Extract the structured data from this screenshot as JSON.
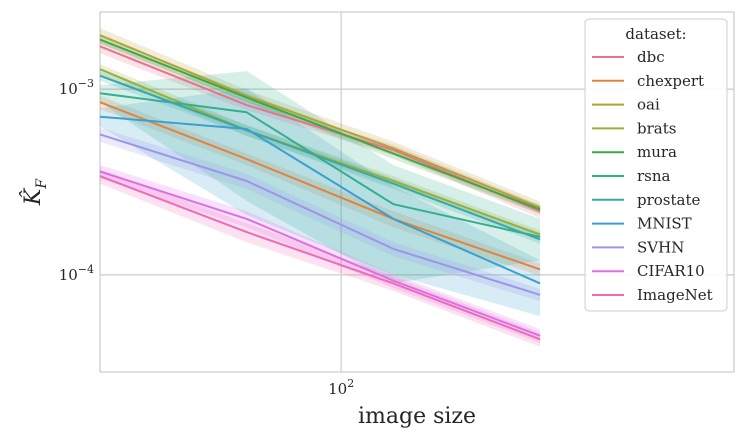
{
  "chart_data": {
    "type": "line",
    "title": "",
    "xlabel": "image size",
    "ylabel": "K̂_F",
    "ylabel_display": {
      "main": "K̂",
      "sub": "F"
    },
    "xscale": "log",
    "yscale": "log",
    "xlim": [
      32,
      640
    ],
    "ylim": [
      3e-05,
      0.0026
    ],
    "x_ticks": [
      {
        "value": 100,
        "base": "10",
        "exp": "2"
      }
    ],
    "y_ticks": [
      {
        "value": 0.001,
        "base": "10",
        "exp": "−3"
      },
      {
        "value": 0.0001,
        "base": "10",
        "exp": "−4"
      }
    ],
    "grid": true,
    "legend": {
      "title": "dataset:",
      "placement": "top-right"
    },
    "x": [
      32,
      64,
      128,
      256
    ],
    "series": [
      {
        "name": "dbc",
        "color": "#e8748c",
        "values": [
          0.0017,
          0.00082,
          0.00047,
          0.00022
        ],
        "band": [
          0.00014,
          5e-05,
          3e-05,
          1.8e-05
        ]
      },
      {
        "name": "chexpert",
        "color": "#df8440",
        "values": [
          0.00085,
          0.00042,
          0.0002,
          0.000107
        ],
        "band": [
          7e-05,
          3e-05,
          2e-05,
          8e-06
        ]
      },
      {
        "name": "oai",
        "color": "#b5a235",
        "values": [
          0.00195,
          0.00092,
          0.00048,
          0.00023
        ],
        "band": [
          0.00018,
          7e-05,
          4e-05,
          1.8e-05
        ]
      },
      {
        "name": "brats",
        "color": "#96b03a",
        "values": [
          0.00128,
          0.0006,
          0.00032,
          0.000165
        ],
        "band": [
          8e-05,
          4e-05,
          2e-05,
          8e-06
        ]
      },
      {
        "name": "mura",
        "color": "#3aaa47",
        "values": [
          0.00185,
          0.0009,
          0.00045,
          0.000225
        ],
        "band": [
          0.0001,
          5e-05,
          3e-05,
          1.2e-05
        ]
      },
      {
        "name": "rsna",
        "color": "#33ae8e",
        "values": [
          0.00095,
          0.00075,
          0.00024,
          0.00016
        ],
        "band": [
          0.0001,
          0.0005,
          0.00015,
          4e-05
        ]
      },
      {
        "name": "prostate",
        "color": "#38a8a6",
        "values": [
          0.00118,
          0.0006,
          0.00031,
          0.000155
        ],
        "band": [
          7e-05,
          4e-05,
          2e-05,
          8e-06
        ]
      },
      {
        "name": "MNIST",
        "color": "#3ba0cf",
        "values": [
          0.00071,
          0.00061,
          0.0002,
          9e-05
        ],
        "band": [
          8e-05,
          0.0004,
          0.0001,
          3e-05
        ]
      },
      {
        "name": "SVHN",
        "color": "#9a96ea",
        "values": [
          0.00057,
          0.00032,
          0.000138,
          7.8e-05
        ],
        "band": [
          5e-05,
          3e-05,
          1.2e-05,
          6e-06
        ]
      },
      {
        "name": "CIFAR10",
        "color": "#dd6ee8",
        "values": [
          0.00036,
          0.0002,
          9.3e-05,
          4.7e-05
        ],
        "band": [
          3e-05,
          2e-05,
          8e-06,
          4e-06
        ]
      },
      {
        "name": "ImageNet",
        "color": "#ee6aba",
        "values": [
          0.00034,
          0.00017,
          9e-05,
          4.5e-05
        ],
        "band": [
          3e-05,
          2e-05,
          8e-06,
          4e-06
        ]
      }
    ]
  }
}
